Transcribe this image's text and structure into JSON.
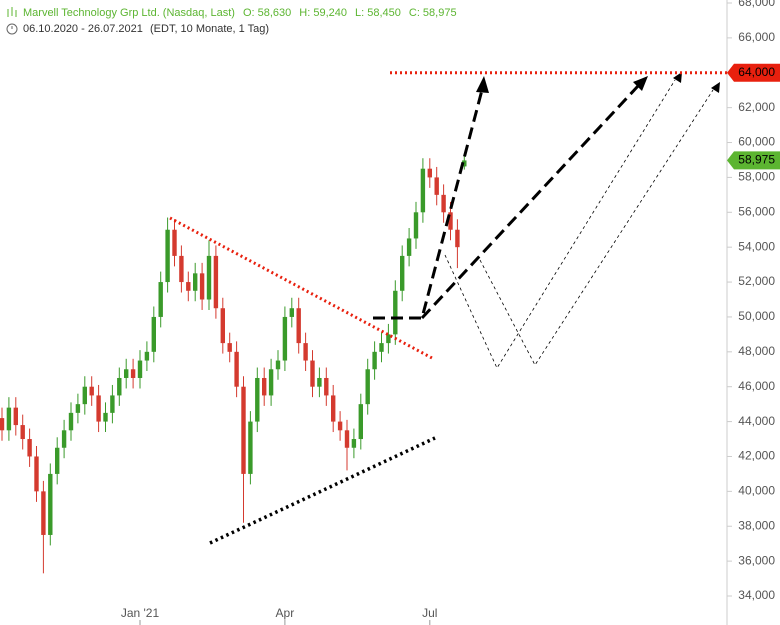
{
  "chart_data": {
    "type": "candlestick",
    "title": "Marvell Technology Grp Ltd. (Nasdaq, Last)",
    "ohlc_labels": [
      "O: 58,630",
      "H: 59,240",
      "L: 58,450",
      "C: 58,975"
    ],
    "subtitle": "06.10.2020 - 26.07.2021",
    "subtitle_note": "(EDT, 10 Monate, 1 Tag)",
    "categories": [
      null,
      null,
      null,
      null,
      null,
      null,
      null,
      null,
      null,
      null,
      null,
      null,
      null,
      null,
      null,
      null,
      null,
      null,
      null,
      null,
      "Jan '21",
      null,
      null,
      null,
      null,
      null,
      null,
      null,
      null,
      null,
      null,
      null,
      null,
      null,
      null,
      null,
      null,
      null,
      null,
      null,
      null,
      "Apr",
      null,
      null,
      null,
      null,
      null,
      null,
      null,
      null,
      null,
      null,
      null,
      null,
      null,
      null,
      null,
      null,
      null,
      null,
      null,
      null,
      "Jul",
      null,
      null,
      null,
      null,
      null
    ],
    "open": [
      44200,
      43500,
      44800,
      43800,
      43000,
      42000,
      40000,
      37500,
      41000,
      42500,
      43500,
      44500,
      45000,
      46000,
      45500,
      44000,
      44500,
      45500,
      46500,
      47000,
      46500,
      47500,
      48000,
      50000,
      52000,
      55000,
      53500,
      52000,
      51500,
      52500,
      51000,
      53500,
      50500,
      48500,
      48000,
      46000,
      41000,
      44000,
      46500,
      45500,
      47000,
      47500,
      50000,
      50500,
      48500,
      47500,
      46000,
      46500,
      45500,
      44000,
      43500,
      42500,
      43000,
      45000,
      47000,
      48000,
      48500,
      49000,
      51500,
      53500,
      54500,
      56000,
      58500,
      58000,
      57000,
      56000,
      55000,
      58630
    ],
    "high": [
      44800,
      45400,
      45400,
      44400,
      43600,
      42600,
      40600,
      41600,
      43100,
      44100,
      45100,
      45600,
      46600,
      46600,
      46100,
      45100,
      46100,
      47100,
      47600,
      47600,
      48100,
      48600,
      50600,
      52600,
      55700,
      55600,
      54100,
      52600,
      53100,
      53100,
      54400,
      54100,
      51100,
      49100,
      48600,
      46600,
      44600,
      47100,
      47100,
      47600,
      48100,
      50600,
      51100,
      51100,
      49100,
      48100,
      47100,
      47100,
      46100,
      44600,
      44100,
      43600,
      45600,
      47600,
      48600,
      49100,
      49600,
      52100,
      54100,
      55100,
      56600,
      59100,
      59100,
      58600,
      57600,
      56600,
      55600,
      59240
    ],
    "low": [
      42900,
      42900,
      43200,
      42400,
      41400,
      39400,
      35300,
      36900,
      40400,
      41900,
      42900,
      43900,
      44400,
      44900,
      43400,
      43400,
      43900,
      44900,
      45900,
      45900,
      45900,
      46900,
      47400,
      49400,
      51400,
      52900,
      51400,
      50900,
      50900,
      50400,
      50400,
      49900,
      47900,
      47400,
      45400,
      38200,
      40400,
      43400,
      44900,
      44900,
      46400,
      46900,
      49400,
      47900,
      46900,
      45400,
      45400,
      44900,
      43400,
      42900,
      41200,
      41900,
      42400,
      44400,
      46400,
      47400,
      47900,
      48400,
      50900,
      52900,
      53900,
      55400,
      57400,
      56400,
      55400,
      54400,
      52800,
      58450
    ],
    "close": [
      43500,
      44800,
      43800,
      43000,
      42000,
      40000,
      37500,
      41000,
      42500,
      43500,
      44500,
      45000,
      46000,
      45500,
      44000,
      44500,
      45500,
      46500,
      47000,
      46500,
      47500,
      48000,
      50000,
      52000,
      55000,
      53500,
      52000,
      51500,
      52500,
      51000,
      53500,
      50500,
      48500,
      48000,
      46000,
      41000,
      44000,
      46500,
      45500,
      47000,
      47500,
      50000,
      50500,
      48500,
      47500,
      46000,
      46500,
      45500,
      44000,
      43500,
      42500,
      43000,
      45000,
      47000,
      48000,
      48500,
      49000,
      51500,
      53500,
      54500,
      56000,
      58500,
      58000,
      57000,
      56000,
      55000,
      54000,
      58975
    ],
    "up_color": "#3a9a2a",
    "down_color": "#d43a2f",
    "ylim": [
      34000,
      68000
    ],
    "yticks": [
      {
        "value": 34000,
        "label": "34,000"
      },
      {
        "value": 36000,
        "label": "36,000"
      },
      {
        "value": 38000,
        "label": "38,000"
      },
      {
        "value": 40000,
        "label": "40,000"
      },
      {
        "value": 42000,
        "label": "42,000"
      },
      {
        "value": 44000,
        "label": "44,000"
      },
      {
        "value": 46000,
        "label": "46,000"
      },
      {
        "value": 48000,
        "label": "48,000"
      },
      {
        "value": 50000,
        "label": "50,000"
      },
      {
        "value": 52000,
        "label": "52,000"
      },
      {
        "value": 54000,
        "label": "54,000"
      },
      {
        "value": 56000,
        "label": "56,000"
      },
      {
        "value": 58000,
        "label": "58,000"
      },
      {
        "value": 60000,
        "label": "60,000"
      },
      {
        "value": 62000,
        "label": "62,000"
      },
      {
        "value": 64000,
        "label": "64,000"
      },
      {
        "value": 66000,
        "label": "66,000"
      },
      {
        "value": 68000,
        "label": "68,000"
      }
    ],
    "target": {
      "value": 64000,
      "label": "64,000",
      "color": "#e8200e"
    },
    "last_price": {
      "value": 58975,
      "label": "58,975",
      "color": "#5cb531"
    }
  }
}
